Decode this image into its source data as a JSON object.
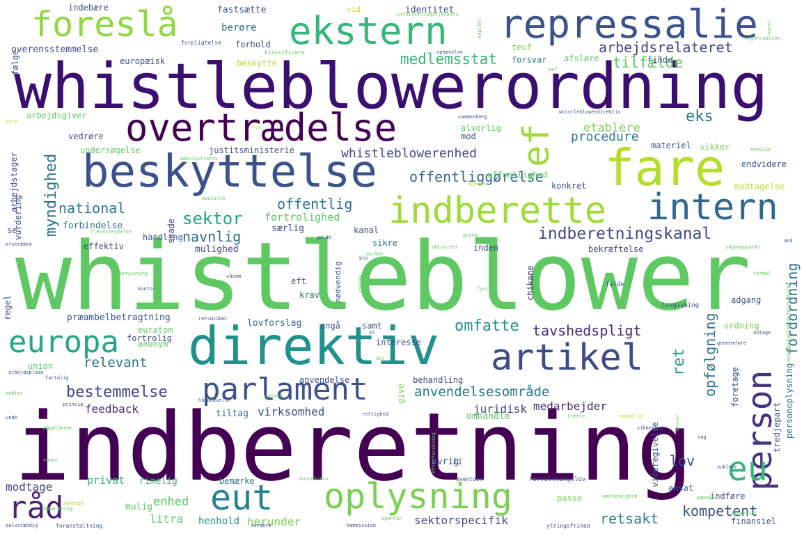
{
  "words": [
    {
      "text": "indberetning",
      "color": "#440154"
    },
    {
      "text": "whistleblower",
      "color": "#5ec962"
    },
    {
      "text": "whistleblowerordning",
      "color": "#3b0f70"
    },
    {
      "text": "direktiv",
      "color": "#21918c"
    },
    {
      "text": "fare",
      "color": "#b5de2b"
    },
    {
      "text": "beskyttelse",
      "color": "#3b528b"
    },
    {
      "text": "overtrædelse",
      "color": "#440154"
    },
    {
      "text": "ekstern",
      "color": "#35b779"
    },
    {
      "text": "repressalie",
      "color": "#3b528b"
    },
    {
      "text": "foreslå",
      "color": "#90d743"
    },
    {
      "text": "indberette",
      "color": "#a0da39"
    },
    {
      "text": "intern",
      "color": "#31688e"
    },
    {
      "text": "artikel",
      "color": "#3e4a89"
    },
    {
      "text": "parlament",
      "color": "#3b528b"
    },
    {
      "text": "eut",
      "color": "#26828e"
    },
    {
      "text": "oplysning",
      "color": "#7ad151"
    },
    {
      "text": "europa",
      "color": "#22a884"
    },
    {
      "text": "person",
      "color": "#46327e"
    },
    {
      "text": "eu",
      "color": "#35b779"
    },
    {
      "text": "råd",
      "color": "#482173"
    },
    {
      "text": "ef",
      "color": "#a0da39"
    },
    {
      "text": "indberetningskanal",
      "color": "#3e4a89"
    },
    {
      "text": "arbejdsrelateret",
      "color": "#414487"
    },
    {
      "text": "medlemsstat",
      "color": "#35b779"
    },
    {
      "text": "tilfælde",
      "color": "#5ec962"
    },
    {
      "text": "offentliggørelse",
      "color": "#31688e"
    },
    {
      "text": "whistleblowerenhed",
      "color": "#3e4a89"
    },
    {
      "text": "procedure",
      "color": "#2a788e"
    },
    {
      "text": "etablere",
      "color": "#7ad151"
    },
    {
      "text": "eks",
      "color": "#2a788e"
    },
    {
      "text": "national",
      "color": "#2a788e"
    },
    {
      "text": "sektor",
      "color": "#20a486"
    },
    {
      "text": "offentlig",
      "color": "#2c728e"
    },
    {
      "text": "navnlig",
      "color": "#2c728e"
    },
    {
      "text": "myndighed",
      "color": "#2c728e"
    },
    {
      "text": "omfatte",
      "color": "#21918c"
    },
    {
      "text": "tavshedspligt",
      "color": "#482878"
    },
    {
      "text": "anvendelsesområde",
      "color": "#2a788e"
    },
    {
      "text": "bestemmelse",
      "color": "#3e4a89"
    },
    {
      "text": "relevant",
      "color": "#2c728e"
    },
    {
      "text": "kompetent",
      "color": "#3b528b"
    },
    {
      "text": "retsakt",
      "color": "#26828e"
    },
    {
      "text": "opfølgning",
      "color": "#2c728e"
    },
    {
      "text": "fordordning",
      "color": "#2c728e"
    },
    {
      "text": "ret",
      "color": "#20a486"
    },
    {
      "text": "lov",
      "color": "#3b528b"
    },
    {
      "text": "feedback",
      "color": "#482878"
    },
    {
      "text": "juridisk",
      "color": "#3e4a89"
    },
    {
      "text": "medarbejder",
      "color": "#482878"
    },
    {
      "text": "virksomhed",
      "color": "#3b528b"
    },
    {
      "text": "tiltag",
      "color": "#2c728e"
    },
    {
      "text": "omhandle",
      "color": "#5ec962"
    },
    {
      "text": "enhed",
      "color": "#5ec962"
    },
    {
      "text": "litra",
      "color": "#5ec962"
    },
    {
      "text": "henhold",
      "color": "#21918c"
    },
    {
      "text": "herunder",
      "color": "#7ad151"
    },
    {
      "text": "sektorspecifik",
      "color": "#3e4a89"
    },
    {
      "text": "modtage",
      "color": "#414487"
    },
    {
      "text": "privat",
      "color": "#35b779"
    },
    {
      "text": "rimelig",
      "color": "#35b779"
    },
    {
      "text": "mulig",
      "color": "#5ec962"
    },
    {
      "text": "bemærke",
      "color": "#2a788e"
    },
    {
      "text": "øvrig",
      "color": "#3e4a89"
    },
    {
      "text": "forbindelse",
      "color": "#2c728e"
    },
    {
      "text": "effektiv",
      "color": "#3e4a89"
    },
    {
      "text": "mulighed",
      "color": "#3e4a89"
    },
    {
      "text": "særlig",
      "color": "#3b528b"
    },
    {
      "text": "fortrolighed",
      "color": "#5ec962"
    },
    {
      "text": "skade",
      "color": "#3e4a89"
    },
    {
      "text": "handling",
      "color": "#3b528b"
    },
    {
      "text": "kanal",
      "color": "#3b528b"
    },
    {
      "text": "sikre",
      "color": "#2c728e"
    },
    {
      "text": "inden",
      "color": "#3e4a89"
    },
    {
      "text": "bekræftelse",
      "color": "#3e4a89"
    },
    {
      "text": "chikane",
      "color": "#46327e"
    },
    {
      "text": "eft",
      "color": "#3b528b"
    },
    {
      "text": "krav",
      "color": "#2c728e"
    },
    {
      "text": "lovforslag",
      "color": "#31688e"
    },
    {
      "text": "angå",
      "color": "#3b528b"
    },
    {
      "text": "samt",
      "color": "#3b528b"
    },
    {
      "text": "præambelbetragtning",
      "color": "#3b528b"
    },
    {
      "text": "euratom",
      "color": "#5ec962"
    },
    {
      "text": "anonym",
      "color": "#5ec962"
    },
    {
      "text": "fortrolig",
      "color": "#3b528b"
    },
    {
      "text": "union",
      "color": "#5ec962"
    },
    {
      "text": "anvendelse",
      "color": "#3b528b"
    },
    {
      "text": "behandling",
      "color": "#3e4a89"
    },
    {
      "text": "interesse",
      "color": "#3e4a89"
    },
    {
      "text": "adgang",
      "color": "#3b528b"
    },
    {
      "text": "ordning",
      "color": "#7ad151"
    },
    {
      "text": "regel",
      "color": "#3b528b"
    },
    {
      "text": "undersøgelse",
      "color": "#5ec962"
    },
    {
      "text": "justitsministerie",
      "color": "#3b528b"
    },
    {
      "text": "arbejdstager",
      "color": "#3e4a89"
    },
    {
      "text": "vurdering",
      "color": "#3b528b"
    },
    {
      "text": "se",
      "color": "#3b528b"
    },
    {
      "text": "vedrøre",
      "color": "#3b528b"
    },
    {
      "text": "arbejdsgiver",
      "color": "#5ec962"
    },
    {
      "text": "alvorlig",
      "color": "#5ec962"
    },
    {
      "text": "mod",
      "color": "#3b528b"
    },
    {
      "text": "identitet",
      "color": "#3e4a89"
    },
    {
      "text": "berøre",
      "color": "#2c728e"
    },
    {
      "text": "forhold",
      "color": "#3b528b"
    },
    {
      "text": "fastsætte",
      "color": "#3b528b"
    },
    {
      "text": "indebære",
      "color": "#3b528b"
    },
    {
      "text": "overensstemmelse",
      "color": "#3e4a89"
    },
    {
      "text": "følge",
      "color": "#3b528b"
    },
    {
      "text": "europæisk",
      "color": "#3b528b"
    },
    {
      "text": "beskytte",
      "color": "#b5de2b"
    },
    {
      "text": "forsvar",
      "color": "#2c728e"
    },
    {
      "text": "finde",
      "color": "#3b528b"
    },
    {
      "text": "teuf",
      "color": "#7ad151"
    },
    {
      "text": "afsløre",
      "color": "#5ec962"
    },
    {
      "text": "materiel",
      "color": "#3b528b"
    },
    {
      "text": "sikker",
      "color": "#7ad151"
    },
    {
      "text": "konkret",
      "color": "#3b528b"
    },
    {
      "text": "offentlighed",
      "color": "#5ec962"
    },
    {
      "text": "endvidere",
      "color": "#3b528b"
    },
    {
      "text": "modtagelse",
      "color": "#b5de2b"
    },
    {
      "text": "personoplysning",
      "color": "#2c728e"
    },
    {
      "text": "tredjepart",
      "color": "#3b528b"
    },
    {
      "text": "foretage",
      "color": "#3b528b"
    },
    {
      "text": "ansat",
      "color": "#2c728e"
    },
    {
      "text": "indføre",
      "color": "#3b528b"
    },
    {
      "text": "videregivelse",
      "color": "#3b528b"
    },
    {
      "text": "passe",
      "color": "#7ad151"
    },
    {
      "text": "finansiel",
      "color": "#3b528b"
    },
    {
      "text": "give",
      "color": "#7ad151"
    },
    {
      "text": "nødvendig",
      "color": "#3b528b"
    },
    {
      "text": "ii",
      "color": "#3b528b"
    },
    {
      "text": "vid",
      "color": "#b5de2b"
    },
    {
      "text": "kapitel",
      "color": "#5ec962"
    },
    {
      "text": "opret",
      "color": "#5ec962"
    },
    {
      "text": "ophævelse",
      "color": "#3b528b"
    },
    {
      "text": "forpligtelse",
      "color": "#3b528b"
    },
    {
      "text": "klassificere",
      "color": "#5ec962"
    },
    {
      "text": "organisation",
      "color": "#5ec962"
    },
    {
      "text": "efterretningstjeneste",
      "color": "#7ad151"
    },
    {
      "text": "whistleblowerdirektiv",
      "color": "#3b528b"
    },
    {
      "text": "gælde",
      "color": "#3b528b"
    },
    {
      "text": "aktivitet",
      "color": "#5ec962"
    },
    {
      "text": "område",
      "color": "#5ec962"
    },
    {
      "text": "grund",
      "color": "#5ec962"
    },
    {
      "text": "udgangspunkt",
      "color": "#5ec962"
    },
    {
      "text": "formål",
      "color": "#5ec962"
    },
    {
      "text": "falde",
      "color": "#3b528b"
    },
    {
      "text": "lovgivning",
      "color": "#3b528b"
    },
    {
      "text": "fysisk",
      "color": "#5ec962"
    },
    {
      "text": "antage",
      "color": "#3b528b"
    },
    {
      "text": "gennemføre",
      "color": "#3b528b"
    },
    {
      "text": "databeskyttelsesforordning",
      "color": "#5ec962"
    },
    {
      "text": "fortolig",
      "color": "#3b528b"
    },
    {
      "text": "ansvar",
      "color": "#7ad151"
    },
    {
      "text": "konsekvens",
      "color": "#5ec962"
    },
    {
      "text": "forvaltningslov",
      "color": "#3e4a89"
    },
    {
      "text": "eventuel",
      "color": "#3b528b"
    },
    {
      "text": "nuklear",
      "color": "#3b528b"
    },
    {
      "text": "omstændighed",
      "color": "#5ec962"
    },
    {
      "text": "udpege",
      "color": "#5ec962"
    },
    {
      "text": "potentiel",
      "color": "#5ec962"
    },
    {
      "text": "ytringsfrihed",
      "color": "#3b528b"
    },
    {
      "text": "kommission",
      "color": "#3b528b"
    },
    {
      "text": "agentur",
      "color": "#5ec962"
    },
    {
      "text": "vurdere",
      "color": "#3b528b"
    },
    {
      "text": "foranstaltning",
      "color": "#3b528b"
    },
    {
      "text": "selvstændig",
      "color": "#3b528b"
    },
    {
      "text": "bemærkning",
      "color": "#5ec962"
    },
    {
      "text": "imødegå",
      "color": "#b5de2b"
    },
    {
      "text": "navne",
      "color": "#5ec962"
    },
    {
      "text": "pågældende",
      "color": "#5ec962"
    },
    {
      "text": "unde",
      "color": "#3b528b"
    },
    {
      "text": "medfør",
      "color": "#5ec962"
    },
    {
      "text": "princip",
      "color": "#3b528b"
    },
    {
      "text": "håndhævelse",
      "color": "#3b528b"
    },
    {
      "text": "arbejdsplads",
      "color": "#3b528b"
    },
    {
      "text": "retsmiddel",
      "color": "#3b528b"
    },
    {
      "text": "henvisning",
      "color": "#5ec962"
    },
    {
      "text": "kontor",
      "color": "#3b528b"
    },
    {
      "text": "afskrække",
      "color": "#3b528b"
    },
    {
      "text": "tjenesteydelse",
      "color": "#5ec962"
    },
    {
      "text": "specifik",
      "color": "#5ec962"
    },
    {
      "text": "administrativ",
      "color": "#5ec962"
    },
    {
      "text": "hensyn",
      "color": "#b5de2b"
    },
    {
      "text": "henvise",
      "color": "#5ec962"
    },
    {
      "text": "sammenhæng",
      "color": "#3b528b"
    },
    {
      "text": "eef",
      "color": "#5ec962"
    },
    {
      "text": "fore",
      "color": "#b5de2b"
    },
    {
      "text": "fov",
      "color": "#b5de2b"
    },
    {
      "text": "ble",
      "color": "#3b528b"
    },
    {
      "text": "and",
      "color": "#3b528b"
    },
    {
      "text": "risiko",
      "color": "#5ec962"
    },
    {
      "text": "såsom",
      "color": "#3b528b"
    },
    {
      "text": "al",
      "color": "#3b528b"
    },
    {
      "text": "del",
      "color": "#7ad151"
    },
    {
      "text": "marked",
      "color": "#5ec962"
    },
    {
      "text": "rettighed",
      "color": "#3b528b"
    },
    {
      "text": "træffe",
      "color": "#5ec962"
    },
    {
      "text": "mundtlig",
      "color": "#b5de2b"
    },
    {
      "text": "sikkerhed",
      "color": "#3b528b"
    },
    {
      "text": "sag",
      "color": "#3b528b"
    },
    {
      "text": "efterforskning",
      "color": "#5ec962"
    }
  ]
}
